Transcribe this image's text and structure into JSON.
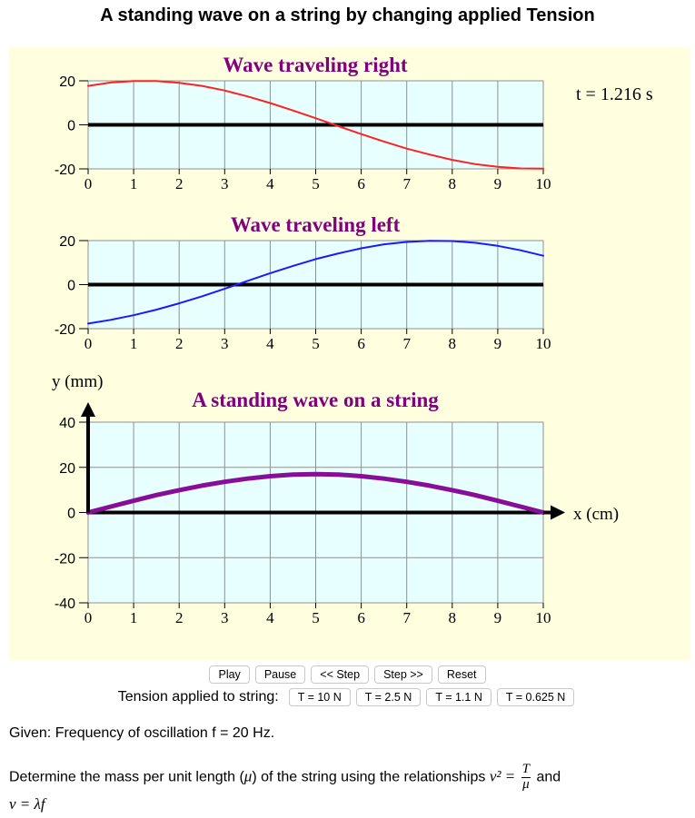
{
  "page": {
    "title": "A standing wave on a string by changing applied Tension"
  },
  "sim": {
    "time_readout": "t = 1.216 s",
    "y_axis_label": "y (mm)",
    "x_axis_label": "x (cm)",
    "colors": {
      "background": "#ffffe0",
      "plot_area": "#e8ffff",
      "grid": "#909090",
      "axis": "#000000",
      "right_wave": "#ff2222",
      "left_wave": "#1a1aff",
      "standing_wave": "#880e9a",
      "title_purple": "#800080"
    }
  },
  "chart_data": [
    {
      "type": "line",
      "title": "Wave traveling right",
      "x": [
        0,
        0.5,
        1,
        1.5,
        2,
        2.5,
        3,
        3.5,
        4,
        4.5,
        5,
        5.5,
        6,
        6.5,
        7,
        7.5,
        8,
        8.5,
        9,
        9.5,
        10
      ],
      "series": [
        {
          "name": "Wave traveling right",
          "values": [
            17.7,
            19.2,
            19.9,
            19.9,
            19.1,
            17.7,
            15.6,
            12.9,
            9.9,
            6.5,
            3.0,
            -0.6,
            -4.2,
            -7.6,
            -10.8,
            -13.5,
            -15.9,
            -17.8,
            -19.1,
            -19.8,
            -19.9
          ]
        }
      ],
      "xlabel": "",
      "ylabel": "",
      "xlim": [
        0,
        10
      ],
      "ylim": [
        -20,
        20
      ],
      "xticks": [
        "0",
        "1",
        "2",
        "3",
        "4",
        "5",
        "6",
        "7",
        "8",
        "9",
        "10"
      ],
      "yticks": [
        "20",
        "0",
        "-20"
      ],
      "grid": true
    },
    {
      "type": "line",
      "title": "Wave traveling left",
      "x": [
        0,
        0.5,
        1,
        1.5,
        2,
        2.5,
        3,
        3.5,
        4,
        4.5,
        5,
        5.5,
        6,
        6.5,
        7,
        7.5,
        8,
        8.5,
        9,
        9.5,
        10
      ],
      "series": [
        {
          "name": "Wave traveling left",
          "values": [
            -17.7,
            -16.0,
            -13.9,
            -11.4,
            -8.5,
            -5.3,
            -1.9,
            1.7,
            5.2,
            8.5,
            11.6,
            14.2,
            16.5,
            18.3,
            19.4,
            19.9,
            19.8,
            19.0,
            17.6,
            15.6,
            13.1
          ]
        }
      ],
      "xlabel": "",
      "ylabel": "",
      "xlim": [
        0,
        10
      ],
      "ylim": [
        -20,
        20
      ],
      "xticks": [
        "0",
        "1",
        "2",
        "3",
        "4",
        "5",
        "6",
        "7",
        "8",
        "9",
        "10"
      ],
      "yticks": [
        "20",
        "0",
        "-20"
      ],
      "grid": true
    },
    {
      "type": "line",
      "title": "A standing wave on a string",
      "x": [
        0,
        0.5,
        1,
        1.5,
        2,
        2.5,
        3,
        3.5,
        4,
        4.5,
        5,
        5.5,
        6,
        6.5,
        7,
        7.5,
        8,
        8.5,
        9,
        9.5,
        10
      ],
      "series": [
        {
          "name": "Standing wave",
          "values": [
            0,
            2.6,
            5.2,
            7.7,
            9.9,
            11.9,
            13.6,
            15.0,
            16.1,
            16.8,
            17.0,
            16.8,
            16.1,
            15.0,
            13.6,
            11.9,
            9.9,
            7.7,
            5.2,
            2.6,
            0
          ]
        }
      ],
      "xlabel": "x (cm)",
      "ylabel": "y (mm)",
      "xlim": [
        0,
        10
      ],
      "ylim": [
        -40,
        40
      ],
      "xticks": [
        "0",
        "1",
        "2",
        "3",
        "4",
        "5",
        "6",
        "7",
        "8",
        "9",
        "10"
      ],
      "yticks": [
        "40",
        "20",
        "0",
        "-20",
        "-40"
      ],
      "grid": true
    }
  ],
  "controls": {
    "play": "Play",
    "pause": "Pause",
    "step_back": "<< Step",
    "step_forward": "Step >>",
    "reset": "Reset",
    "tension_label": "Tension applied to string:",
    "tensions": [
      "T = 10 N",
      "T = 2.5 N",
      "T = 1.1 N",
      "T = 0.625 N"
    ]
  },
  "text": {
    "given": "Given: Frequency of oscillation f = 20 Hz.",
    "determine_prefix": "Determine the mass per unit length (",
    "mu": "μ",
    "determine_middle": ") of the string using the relationships",
    "eq1_lhs": "v² =",
    "eq1_num": "T",
    "eq1_den": "μ",
    "and": "and",
    "eq2": "v = λf"
  }
}
